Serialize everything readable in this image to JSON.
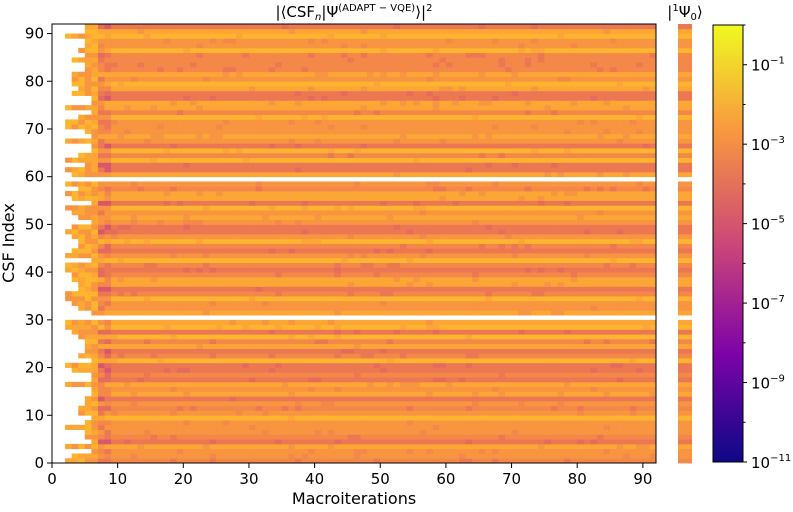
{
  "chart_data": [
    {
      "type": "heatmap",
      "title": "|⟨CSF",
      "title_sub": "n",
      "title_mid": "|Ψ",
      "title_sup": "(ADAPT − VQE)",
      "title_end": "⟩|",
      "title_power": "2",
      "xlabel": "Macroiterations",
      "ylabel": "CSF Index",
      "xlim": [
        0,
        92
      ],
      "ylim": [
        0,
        92
      ],
      "x_ticks": [
        "0",
        "10",
        "20",
        "30",
        "40",
        "50",
        "60",
        "70",
        "80",
        "90"
      ],
      "y_ticks": [
        "0",
        "10",
        "20",
        "30",
        "40",
        "50",
        "60",
        "70",
        "80",
        "90"
      ],
      "rows": 92,
      "columns": 92,
      "empty_rows": [
        30,
        59
      ],
      "color_scale": "log",
      "colormap": "plasma"
    },
    {
      "type": "heatmap",
      "title": "|",
      "title_sup": "1",
      "title_mid": "Ψ",
      "title_sub": "0",
      "title_end": "⟩",
      "rows": 92,
      "columns": 1
    },
    {
      "type": "colorbar",
      "scale": "log",
      "range": [
        "1e-11",
        "1"
      ],
      "tick_base": "10",
      "tick_exponents": [
        "-1",
        "-3",
        "-5",
        "-7",
        "-9",
        "-11"
      ],
      "colors": [
        "#0d0887",
        "#7e03a8",
        "#cc4778",
        "#f89540",
        "#f0f921"
      ]
    }
  ]
}
